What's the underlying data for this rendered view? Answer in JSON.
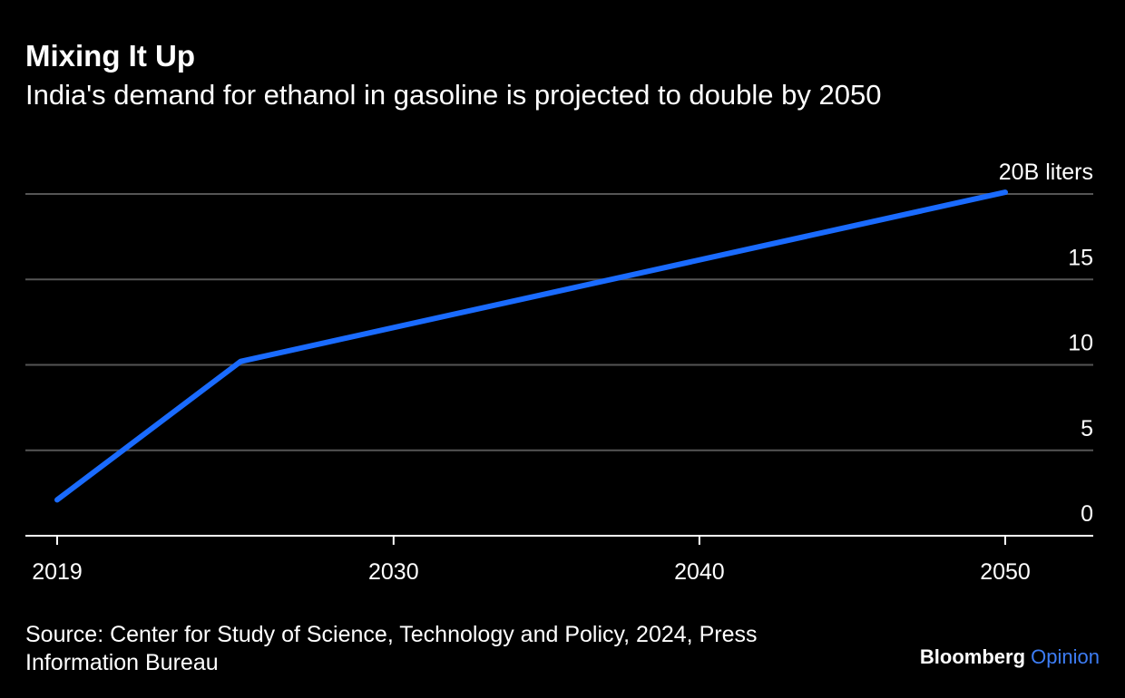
{
  "title": "Mixing It Up",
  "subtitle": "India's demand for ethanol in gasoline is projected to double by 2050",
  "source": "Source: Center for Study of Science, Technology and Policy, 2024, Press Information Bureau",
  "brand": {
    "name": "Bloomberg",
    "section": "Opinion",
    "section_color": "#3d7df5"
  },
  "colors": {
    "background": "#000000",
    "line": "#1a6bff",
    "grid": "#555555",
    "text": "#ffffff"
  },
  "chart_data": {
    "type": "line",
    "title": "Mixing It Up",
    "subtitle": "India's demand for ethanol in gasoline is projected to double by 2050",
    "xlabel": "",
    "ylabel": "",
    "unit": "B liters",
    "xlim": [
      2018,
      2052.5
    ],
    "ylim": [
      0,
      20
    ],
    "x_ticks": [
      2019,
      2030,
      2040,
      2050
    ],
    "x_tick_labels": [
      "2019",
      "2030",
      "2040",
      "2050"
    ],
    "y_ticks": [
      0,
      5,
      10,
      15,
      20
    ],
    "y_tick_labels": [
      "0",
      "5",
      "10",
      "15",
      "20B liters"
    ],
    "grid": true,
    "y_axis_position": "right",
    "series": [
      {
        "x": [
          2019,
          2025,
          2050
        ],
        "y": [
          2.1,
          10.2,
          20.1
        ]
      }
    ]
  }
}
